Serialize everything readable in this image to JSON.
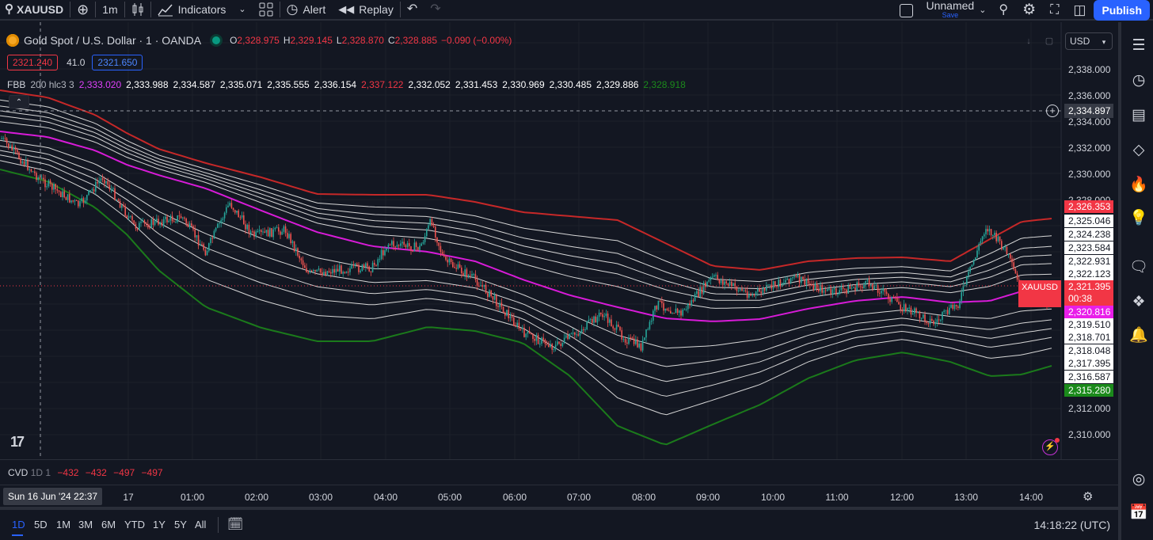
{
  "toolbar": {
    "symbol": "XAUUSD",
    "interval": "1m",
    "indicators_label": "Indicators",
    "alert_label": "Alert",
    "replay_label": "Replay",
    "layout_name": "Unnamed",
    "layout_save": "Save",
    "publish_label": "Publish"
  },
  "legend": {
    "title": "Gold Spot / U.S. Dollar · 1 · OANDA",
    "o_key": "O",
    "o": "2,328.975",
    "h_key": "H",
    "h": "2,329.145",
    "l_key": "L",
    "l": "2,328.870",
    "c_key": "C",
    "c": "2,328.885",
    "change": "−0.090 (−0.00%)",
    "sell": "2321.240",
    "spread": "41.0",
    "buy": "2321.650"
  },
  "fbb": {
    "name": "FBB",
    "params": "200 hlc3 3",
    "values": [
      {
        "v": "2,333.020",
        "color": "#e040fb"
      },
      {
        "v": "2,333.988",
        "color": "#ffffff"
      },
      {
        "v": "2,334.587",
        "color": "#ffffff"
      },
      {
        "v": "2,335.071",
        "color": "#ffffff"
      },
      {
        "v": "2,335.555",
        "color": "#ffffff"
      },
      {
        "v": "2,336.154",
        "color": "#ffffff"
      },
      {
        "v": "2,337.122",
        "color": "#f23645"
      },
      {
        "v": "2,332.052",
        "color": "#ffffff"
      },
      {
        "v": "2,331.453",
        "color": "#ffffff"
      },
      {
        "v": "2,330.969",
        "color": "#ffffff"
      },
      {
        "v": "2,330.485",
        "color": "#ffffff"
      },
      {
        "v": "2,329.886",
        "color": "#ffffff"
      },
      {
        "v": "2,328.918",
        "color": "#1b8a1b"
      }
    ]
  },
  "price_scale": {
    "currency": "USD",
    "ticks": [
      "2,338.000",
      "2,336.000",
      "2,334.000",
      "2,332.000",
      "2,330.000",
      "2,328.000",
      "2,312.000",
      "2,310.000"
    ],
    "crosshair_price": "2,334.897",
    "current_price": "2,321.395",
    "countdown": "00:38",
    "symbol_tag": "XAUUSD",
    "band_tags": [
      {
        "v": "2,326.353",
        "bg": "#f23645",
        "fg": "#ffffff"
      },
      {
        "v": "2,325.046",
        "bg": "#ffffff",
        "fg": "#131722"
      },
      {
        "v": "2,324.238",
        "bg": "#ffffff",
        "fg": "#131722"
      },
      {
        "v": "2,323.584",
        "bg": "#ffffff",
        "fg": "#131722"
      },
      {
        "v": "2,322.931",
        "bg": "#ffffff",
        "fg": "#131722"
      },
      {
        "v": "2,322.123",
        "bg": "#ffffff",
        "fg": "#131722"
      },
      {
        "v": "2,320.816",
        "bg": "#e91ee9",
        "fg": "#ffffff"
      },
      {
        "v": "2,319.510",
        "bg": "#ffffff",
        "fg": "#131722"
      },
      {
        "v": "2,318.701",
        "bg": "#ffffff",
        "fg": "#131722"
      },
      {
        "v": "2,318.048",
        "bg": "#ffffff",
        "fg": "#131722"
      },
      {
        "v": "2,317.395",
        "bg": "#ffffff",
        "fg": "#131722"
      },
      {
        "v": "2,316.587",
        "bg": "#ffffff",
        "fg": "#131722"
      },
      {
        "v": "2,315.280",
        "bg": "#1b8a1b",
        "fg": "#ffffff"
      }
    ]
  },
  "cvd": {
    "name": "CVD",
    "params": "1D 1",
    "values": [
      "−432",
      "−432",
      "−497",
      "−497"
    ]
  },
  "time_axis": {
    "cursor": "Sun 16 Jun '24   22:37",
    "labels": [
      "17",
      "01:00",
      "02:00",
      "03:00",
      "04:00",
      "05:00",
      "06:00",
      "07:00",
      "08:00",
      "09:00",
      "10:00",
      "11:00",
      "12:00",
      "13:00",
      "14:00"
    ]
  },
  "bottom": {
    "ranges": [
      "1D",
      "5D",
      "1M",
      "3M",
      "6M",
      "YTD",
      "1Y",
      "5Y",
      "All"
    ],
    "active_range": "1D",
    "clock": "14:18:22 (UTC)"
  },
  "sidebar_icons": [
    "watchlist-icon",
    "alarm-clock-icon",
    "object-tree-icon",
    "layers-icon",
    "hotlist-flame-icon",
    "ideas-bulb-icon",
    "chat-icon",
    "broadcast-icon",
    "notifications-bell-icon",
    "target-icon",
    "calendar-icon"
  ],
  "colors": {
    "background": "#131722",
    "upper_band": "#c62828",
    "lower_band": "#1b7a1b",
    "basis": "#d81bd8",
    "inner_bands": "#d6d6d6",
    "candle_up": "#26a69a",
    "candle_down": "#ef5350",
    "accent": "#2962ff"
  },
  "chart_data": {
    "type": "candlestick",
    "indicator": "Fibonacci Bollinger Bands",
    "time_range": [
      "Sun 16 Jun '24 22:37",
      "14:18"
    ],
    "basis_last": 2320.816,
    "upper_last": 2326.353,
    "lower_last": 2315.28,
    "price_last": 2321.395
  }
}
